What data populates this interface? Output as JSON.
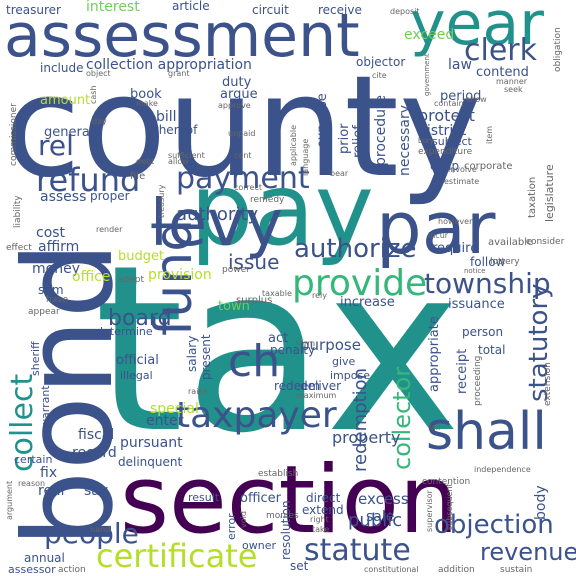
{
  "palette": {
    "dark_purple": "#440154",
    "indigo": "#3b528b",
    "slate": "#31688e",
    "teal": "#21918c",
    "green": "#35b779",
    "light_green": "#6ece58",
    "lime": "#b5de2b",
    "yellow": "#fde725",
    "grey": "#666666"
  },
  "words": [
    {
      "text": "tax",
      "color": "#21918c"
    },
    {
      "text": "county",
      "color": "#3b528b"
    },
    {
      "text": "bond",
      "color": "#3b528b"
    },
    {
      "text": "section",
      "color": "#440154"
    },
    {
      "text": "pay",
      "color": "#21918c"
    },
    {
      "text": "assessment",
      "color": "#3b528b"
    },
    {
      "text": "year",
      "color": "#21918c"
    },
    {
      "text": "par",
      "color": "#3b528b"
    },
    {
      "text": "levy",
      "color": "#3b528b"
    },
    {
      "text": "fund",
      "color": "#3b528b"
    },
    {
      "text": "shall",
      "color": "#3b528b"
    },
    {
      "text": "taxpayer",
      "color": "#3b528b"
    },
    {
      "text": "provide",
      "color": "#35b779"
    },
    {
      "text": "township",
      "color": "#3b528b"
    },
    {
      "text": "refund",
      "color": "#3b528b"
    },
    {
      "text": "payment",
      "color": "#3b528b"
    },
    {
      "text": "clerk",
      "color": "#3b528b"
    },
    {
      "text": "certificate",
      "color": "#b5de2b"
    },
    {
      "text": "statute",
      "color": "#3b528b"
    },
    {
      "text": "objection",
      "color": "#3b528b"
    },
    {
      "text": "people",
      "color": "#3b528b"
    },
    {
      "text": "authorize",
      "color": "#3b528b"
    },
    {
      "text": "collect",
      "color": "#21918c"
    },
    {
      "text": "collector",
      "color": "#35b779"
    },
    {
      "text": "redemption",
      "color": "#3b528b"
    },
    {
      "text": "statutory",
      "color": "#3b528b"
    },
    {
      "text": "ch",
      "color": "#3b528b"
    },
    {
      "text": "board",
      "color": "#3b528b"
    },
    {
      "text": "rel",
      "color": "#3b528b"
    },
    {
      "text": "collection appropriation",
      "color": "#3b528b"
    },
    {
      "text": "issue",
      "color": "#3b528b"
    },
    {
      "text": "authority",
      "color": "#3b528b"
    },
    {
      "text": "revenue",
      "color": "#3b528b"
    },
    {
      "text": "property",
      "color": "#3b528b"
    },
    {
      "text": "sale",
      "color": "#3b528b"
    },
    {
      "text": "excess",
      "color": "#3b528b"
    },
    {
      "text": "public",
      "color": "#3b528b"
    },
    {
      "text": "interest",
      "color": "#6ece58"
    },
    {
      "text": "article",
      "color": "#3b528b"
    },
    {
      "text": "circuit",
      "color": "#3b528b"
    },
    {
      "text": "receive",
      "color": "#3b528b"
    },
    {
      "text": "treasurer",
      "color": "#3b528b"
    },
    {
      "text": "include",
      "color": "#3b528b"
    },
    {
      "text": "objector",
      "color": "#3b528b"
    },
    {
      "text": "law",
      "color": "#3b528b"
    },
    {
      "text": "exceed",
      "color": "#6ece58"
    },
    {
      "text": "contend",
      "color": "#3b528b"
    },
    {
      "text": "duty",
      "color": "#3b528b"
    },
    {
      "text": "argue",
      "color": "#3b528b"
    },
    {
      "text": "amount",
      "color": "#b5de2b"
    },
    {
      "text": "general",
      "color": "#3b528b"
    },
    {
      "text": "bill",
      "color": "#3b528b"
    },
    {
      "text": "thereof",
      "color": "#3b528b"
    },
    {
      "text": "book",
      "color": "#3b528b"
    },
    {
      "text": "period",
      "color": "#3b528b"
    },
    {
      "text": "protest",
      "color": "#3b528b"
    },
    {
      "text": "district",
      "color": "#3b528b"
    },
    {
      "text": "procedure",
      "color": "#3b528b"
    },
    {
      "text": "necessary",
      "color": "#3b528b"
    },
    {
      "text": "prior",
      "color": "#3b528b"
    },
    {
      "text": "relief",
      "color": "#3b528b"
    },
    {
      "text": "expense",
      "color": "#3b528b"
    },
    {
      "text": "subject",
      "color": "#3b528b"
    },
    {
      "text": "chap",
      "color": "#3b528b"
    },
    {
      "text": "require",
      "color": "#3b528b"
    },
    {
      "text": "follow",
      "color": "#3b528b"
    },
    {
      "text": "assess",
      "color": "#3b528b"
    },
    {
      "text": "proper",
      "color": "#3b528b"
    },
    {
      "text": "cost",
      "color": "#3b528b"
    },
    {
      "text": "affirm",
      "color": "#3b528b"
    },
    {
      "text": "money",
      "color": "#3b528b"
    },
    {
      "text": "budget",
      "color": "#b5de2b"
    },
    {
      "text": "provision",
      "color": "#b5de2b"
    },
    {
      "text": "office",
      "color": "#b5de2b"
    },
    {
      "text": "town",
      "color": "#6ece58"
    },
    {
      "text": "increase",
      "color": "#3b528b"
    },
    {
      "text": "issuance",
      "color": "#3b528b"
    },
    {
      "text": "purpose",
      "color": "#3b528b"
    },
    {
      "text": "sum",
      "color": "#3b528b"
    },
    {
      "text": "official",
      "color": "#3b528b"
    },
    {
      "text": "determine",
      "color": "#3b528b"
    },
    {
      "text": "act",
      "color": "#3b528b"
    },
    {
      "text": "penalty",
      "color": "#3b528b"
    },
    {
      "text": "salary",
      "color": "#3b528b"
    },
    {
      "text": "present",
      "color": "#3b528b"
    },
    {
      "text": "illegal",
      "color": "#3b528b"
    },
    {
      "text": "redeem",
      "color": "#3b528b"
    },
    {
      "text": "deliver",
      "color": "#3b528b"
    },
    {
      "text": "give",
      "color": "#3b528b"
    },
    {
      "text": "impose",
      "color": "#3b528b"
    },
    {
      "text": "receipt",
      "color": "#3b528b"
    },
    {
      "text": "appropriate",
      "color": "#3b528b"
    },
    {
      "text": "special",
      "color": "#b5de2b"
    },
    {
      "text": "enter",
      "color": "#3b528b"
    },
    {
      "text": "fiscal",
      "color": "#3b528b"
    },
    {
      "text": "pursuant",
      "color": "#3b528b"
    },
    {
      "text": "record",
      "color": "#3b528b"
    },
    {
      "text": "fix",
      "color": "#3b528b"
    },
    {
      "text": "delinquent",
      "color": "#3b528b"
    },
    {
      "text": "real",
      "color": "#3b528b"
    },
    {
      "text": "say",
      "color": "#3b528b"
    },
    {
      "text": "officer",
      "color": "#3b528b"
    },
    {
      "text": "direct",
      "color": "#3b528b"
    },
    {
      "text": "extend",
      "color": "#3b528b"
    },
    {
      "text": "annual",
      "color": "#3b528b"
    },
    {
      "text": "result",
      "color": "#3b528b"
    },
    {
      "text": "body",
      "color": "#3b528b"
    },
    {
      "text": "total",
      "color": "#3b528b"
    },
    {
      "text": "person",
      "color": "#3b528b"
    },
    {
      "text": "resolution",
      "color": "#3b528b"
    },
    {
      "text": "owner",
      "color": "#3b528b"
    },
    {
      "text": "sheriff",
      "color": "#3b528b"
    },
    {
      "text": "warrant",
      "color": "#3b528b"
    },
    {
      "text": "certain",
      "color": "#3b528b"
    },
    {
      "text": "assessor",
      "color": "#3b528b"
    },
    {
      "text": "error",
      "color": "#3b528b"
    },
    {
      "text": "set",
      "color": "#3b528b"
    },
    {
      "text": "sufficient",
      "color": "#666666"
    },
    {
      "text": "available",
      "color": "#666666"
    },
    {
      "text": "consider",
      "color": "#666666"
    },
    {
      "text": "legislature",
      "color": "#666666"
    },
    {
      "text": "taxation",
      "color": "#666666"
    },
    {
      "text": "estimate",
      "color": "#666666"
    },
    {
      "text": "corporate",
      "color": "#666666"
    },
    {
      "text": "expenditure",
      "color": "#666666"
    },
    {
      "text": "government",
      "color": "#666666"
    },
    {
      "text": "incur",
      "color": "#666666"
    },
    {
      "text": "remedy",
      "color": "#666666"
    },
    {
      "text": "commissioner",
      "color": "#666666"
    },
    {
      "text": "liability",
      "color": "#666666"
    },
    {
      "text": "effect",
      "color": "#666666"
    },
    {
      "text": "appear",
      "color": "#666666"
    },
    {
      "text": "have",
      "color": "#666666"
    },
    {
      "text": "reason",
      "color": "#666666"
    },
    {
      "text": "hand",
      "color": "#666666"
    },
    {
      "text": "action",
      "color": "#666666"
    },
    {
      "text": "constitutional",
      "color": "#666666"
    },
    {
      "text": "addition",
      "color": "#666666"
    },
    {
      "text": "sustain",
      "color": "#666666"
    },
    {
      "text": "obligation",
      "color": "#666666"
    },
    {
      "text": "deposit",
      "color": "#666666"
    },
    {
      "text": "grant",
      "color": "#666666"
    },
    {
      "text": "object",
      "color": "#666666"
    },
    {
      "text": "cite",
      "color": "#666666"
    },
    {
      "text": "manner",
      "color": "#666666"
    },
    {
      "text": "seek",
      "color": "#666666"
    },
    {
      "text": "item",
      "color": "#666666"
    },
    {
      "text": "contain",
      "color": "#666666"
    },
    {
      "text": "show",
      "color": "#666666"
    },
    {
      "text": "allow",
      "color": "#666666"
    },
    {
      "text": "debt",
      "color": "#666666"
    },
    {
      "text": "unpaid",
      "color": "#666666"
    },
    {
      "text": "approve",
      "color": "#666666"
    },
    {
      "text": "make",
      "color": "#666666"
    },
    {
      "text": "cash",
      "color": "#666666"
    },
    {
      "text": "file",
      "color": "#666666"
    },
    {
      "text": "adopt",
      "color": "#666666"
    },
    {
      "text": "power",
      "color": "#666666"
    },
    {
      "text": "surplus",
      "color": "#666666"
    },
    {
      "text": "lottery",
      "color": "#666666"
    },
    {
      "text": "notice",
      "color": "#666666"
    },
    {
      "text": "rely",
      "color": "#666666"
    },
    {
      "text": "taxable",
      "color": "#666666"
    },
    {
      "text": "term",
      "color": "#666666"
    },
    {
      "text": "maximum",
      "color": "#666666"
    },
    {
      "text": "raise",
      "color": "#666666"
    },
    {
      "text": "proceeding",
      "color": "#666666"
    },
    {
      "text": "extension",
      "color": "#666666"
    },
    {
      "text": "fail",
      "color": "#666666"
    },
    {
      "text": "establish",
      "color": "#666666"
    },
    {
      "text": "contention",
      "color": "#666666"
    },
    {
      "text": "subsequent",
      "color": "#666666"
    },
    {
      "text": "independence",
      "color": "#666666"
    },
    {
      "text": "supervisor",
      "color": "#666666"
    },
    {
      "text": "void",
      "color": "#666666"
    },
    {
      "text": "right",
      "color": "#666666"
    },
    {
      "text": "take",
      "color": "#666666"
    },
    {
      "text": "monies",
      "color": "#666666"
    },
    {
      "text": "cent",
      "color": "#666666"
    },
    {
      "text": "language",
      "color": "#666666"
    },
    {
      "text": "involve",
      "color": "#666666"
    },
    {
      "text": "bear",
      "color": "#666666"
    },
    {
      "text": "however",
      "color": "#666666"
    },
    {
      "text": "render",
      "color": "#666666"
    },
    {
      "text": "correct",
      "color": "#666666"
    },
    {
      "text": "treasury",
      "color": "#666666"
    },
    {
      "text": "bury",
      "color": "#666666"
    },
    {
      "text": "applicable",
      "color": "#666666"
    },
    {
      "text": "argument",
      "color": "#666666"
    },
    {
      "text": "day",
      "color": "#666666"
    }
  ]
}
